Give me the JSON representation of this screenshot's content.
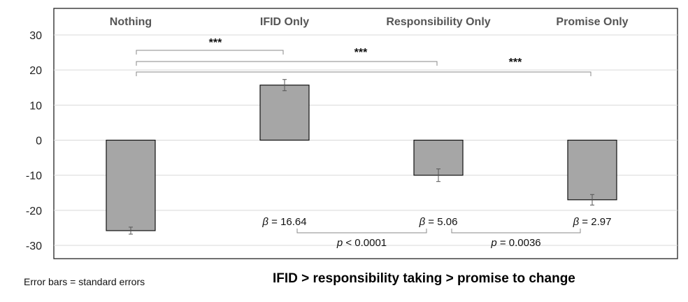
{
  "chart_data": {
    "type": "bar",
    "categories": [
      "Nothing",
      "IFID Only",
      "Responsibility Only",
      "Promise Only"
    ],
    "values": [
      -25.8,
      15.7,
      -10.0,
      -17.0
    ],
    "errors": [
      1.0,
      1.6,
      1.8,
      1.5
    ],
    "ylim": [
      -30,
      30
    ],
    "yticks": [
      30,
      20,
      10,
      0,
      -10,
      -20,
      -30
    ],
    "grid": true,
    "bar_color": "#a6a6a6",
    "significance": [
      {
        "from": 0,
        "to": 1,
        "label": "***"
      },
      {
        "from": 0,
        "to": 2,
        "label": "***"
      },
      {
        "from": 0,
        "to": 3,
        "label": "***"
      }
    ],
    "beta_labels": [
      {
        "category": 1,
        "symbol": "β",
        "text": " = 16.64"
      },
      {
        "category": 2,
        "symbol": "β",
        "text": " = 5.06"
      },
      {
        "category": 3,
        "symbol": "β",
        "text": " = 2.97"
      }
    ],
    "pvalue_comparisons": [
      {
        "from": 1,
        "to": 2,
        "symbol": "p",
        "text": " < 0.0001"
      },
      {
        "from": 2,
        "to": 3,
        "symbol": "p",
        "text": " = 0.0036"
      }
    ]
  },
  "footer": {
    "note": "Error bars = standard errors",
    "title": "IFID > responsibility taking > promise to change"
  }
}
